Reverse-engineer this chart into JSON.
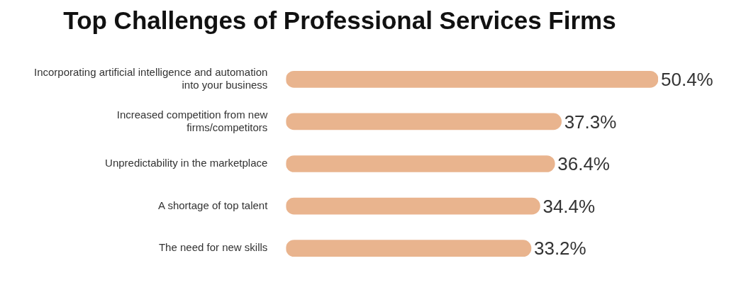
{
  "chart_data": {
    "type": "bar",
    "orientation": "horizontal",
    "title": "Top Challenges of Professional Services Firms",
    "categories": [
      "Incorporating artificial intelligence and automation into your business",
      "Increased competition from new firms/competitors",
      "Unpredictability in the marketplace",
      "A shortage of top talent",
      "The need for new skills"
    ],
    "values": [
      50.4,
      37.3,
      36.4,
      34.4,
      33.2
    ],
    "value_labels": [
      "50.4%",
      "37.3%",
      "36.4%",
      "34.4%",
      "33.2%"
    ],
    "color": "#e9b48e",
    "grid": false,
    "legend": false
  }
}
